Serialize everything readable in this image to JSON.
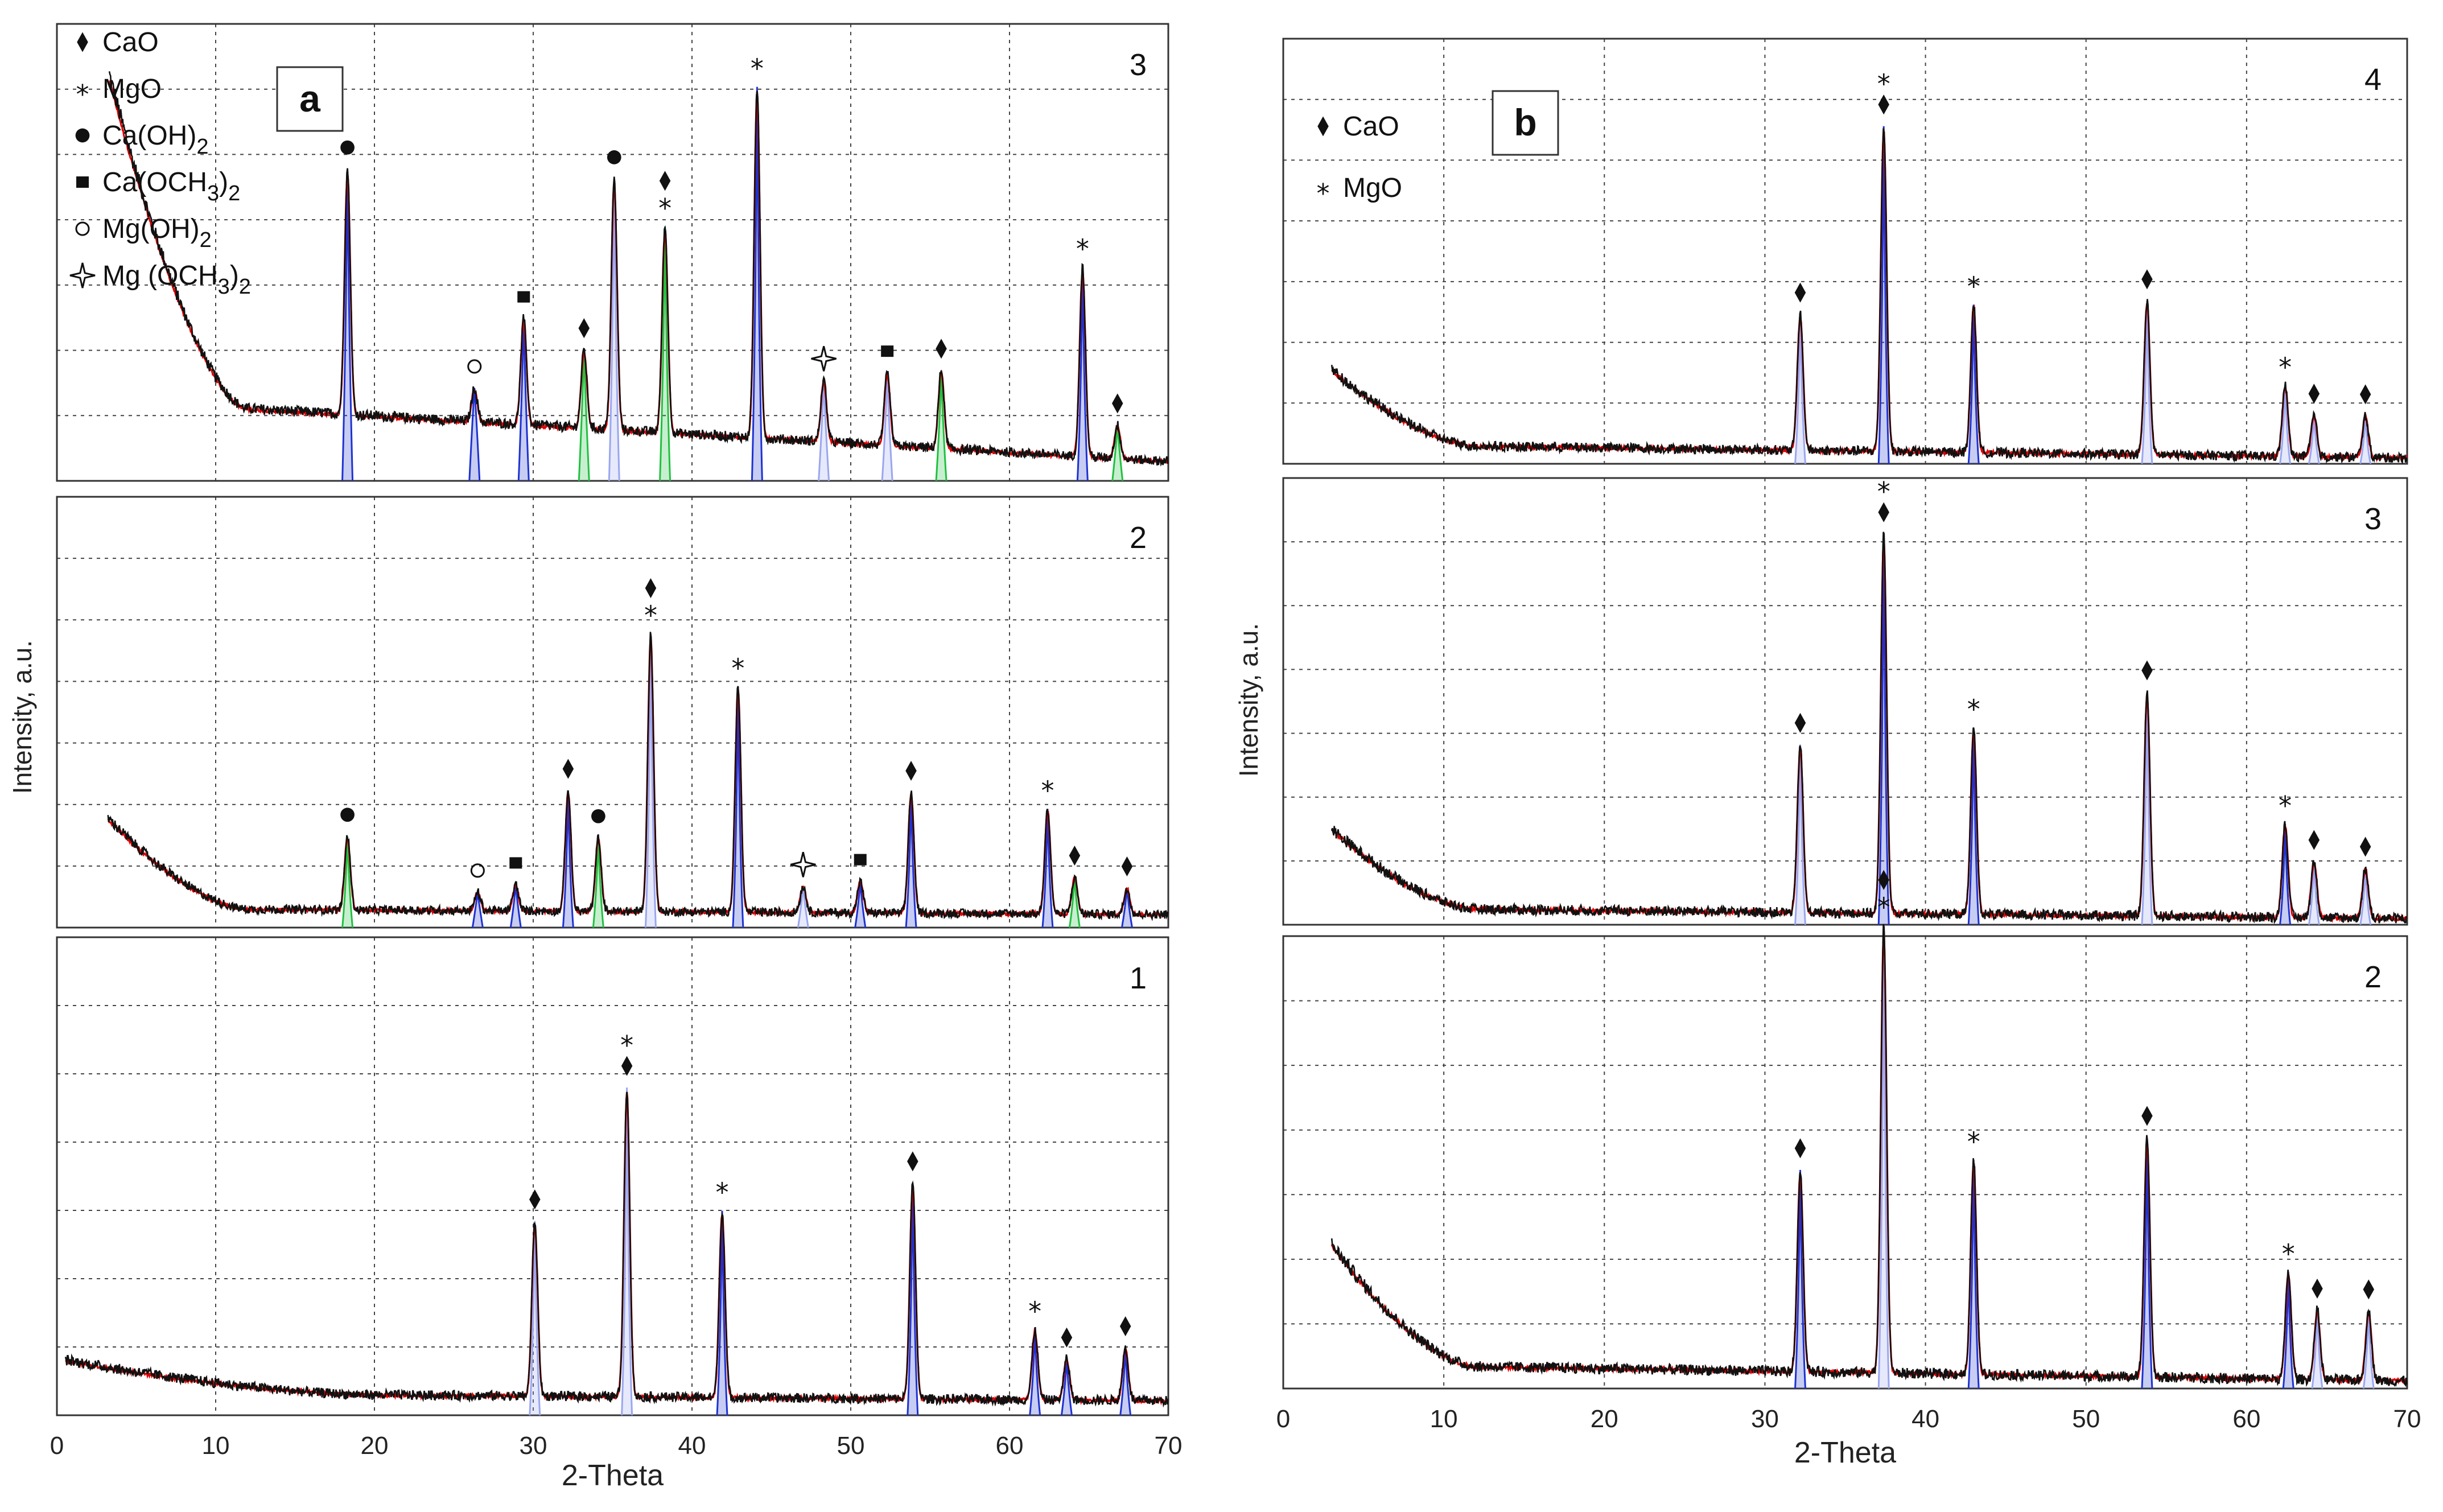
{
  "figure": {
    "colors": {
      "observed": "#111111",
      "calculated": "#e00000",
      "phase_main": "#1e32d0",
      "phase_light": "#9aa6ee",
      "phase_green": "#20c040",
      "grid": "#444444",
      "frame": "#333333"
    }
  },
  "chart_data": [
    {
      "type": "line",
      "panel": "a",
      "panel_label": "a",
      "xlabel": "2-Theta",
      "ylabel": "Intensity, a.u.",
      "xlim": [
        0,
        70
      ],
      "xticks": [
        "0",
        "10",
        "20",
        "30",
        "40",
        "50",
        "60",
        "70"
      ],
      "legend": [
        {
          "symbol": "diamond",
          "label": "CaO"
        },
        {
          "symbol": "star",
          "label": "MgO"
        },
        {
          "symbol": "dot",
          "label": "Ca(OH)",
          "sub": "2"
        },
        {
          "symbol": "square",
          "label": "Ca(OCH",
          "sub": "3",
          "suffix": ")",
          "sub2": "2"
        },
        {
          "symbol": "circle",
          "label": "Mg(OH)",
          "sub": "2"
        },
        {
          "symbol": "sparkle",
          "label": "Mg (OCH",
          "sub": "3",
          "suffix": ")",
          "sub2": "2"
        }
      ],
      "subplots": [
        {
          "label": "3",
          "ymax": 8,
          "background": {
            "start_x": 3.3,
            "start": 7.3,
            "knee_x": 12,
            "knee": 1.3,
            "end": 0.35
          },
          "peaks": [
            {
              "x": 18.3,
              "h": 4.4,
              "c": "blue",
              "m": [
                "dot"
              ]
            },
            {
              "x": 26.3,
              "h": 0.6,
              "c": "blue",
              "m": [
                "circle"
              ]
            },
            {
              "x": 29.4,
              "h": 1.9,
              "c": "blue",
              "m": [
                "square"
              ]
            },
            {
              "x": 33.2,
              "h": 1.4,
              "c": "green",
              "m": [
                "diamond"
              ]
            },
            {
              "x": 35.1,
              "h": 4.5,
              "c": "light",
              "m": [
                "dot"
              ]
            },
            {
              "x": 38.3,
              "h": 3.7,
              "c": "green",
              "m": [
                "star",
                "diamond"
              ]
            },
            {
              "x": 44.1,
              "h": 6.3,
              "c": "blue",
              "m": [
                "star"
              ]
            },
            {
              "x": 48.3,
              "h": 1.1,
              "c": "light",
              "m": [
                "sparkle"
              ]
            },
            {
              "x": 52.3,
              "h": 1.3,
              "c": "light",
              "m": [
                "square"
              ]
            },
            {
              "x": 55.7,
              "h": 1.4,
              "c": "green",
              "m": [
                "diamond"
              ]
            },
            {
              "x": 64.6,
              "h": 3.4,
              "c": "blue",
              "m": [
                "star"
              ]
            },
            {
              "x": 66.8,
              "h": 0.6,
              "c": "green",
              "m": [
                "diamond"
              ]
            }
          ]
        },
        {
          "label": "2",
          "ymax": 8,
          "background": {
            "start_x": 3.2,
            "start": 2.1,
            "knee_x": 12,
            "knee": 0.35,
            "end": 0.25
          },
          "peaks": [
            {
              "x": 18.3,
              "h": 1.4,
              "c": "green",
              "m": [
                "dot"
              ]
            },
            {
              "x": 26.5,
              "h": 0.35,
              "c": "blue",
              "m": [
                "circle"
              ]
            },
            {
              "x": 28.9,
              "h": 0.5,
              "c": "blue",
              "m": [
                "square"
              ]
            },
            {
              "x": 32.2,
              "h": 2.3,
              "c": "blue",
              "m": [
                "diamond"
              ]
            },
            {
              "x": 34.1,
              "h": 1.4,
              "c": "green",
              "m": [
                "dot"
              ]
            },
            {
              "x": 37.4,
              "h": 5.3,
              "c": "light",
              "m": [
                "star",
                "diamond"
              ]
            },
            {
              "x": 42.9,
              "h": 4.3,
              "c": "blue",
              "m": [
                "star"
              ]
            },
            {
              "x": 47.0,
              "h": 0.5,
              "c": "light",
              "m": [
                "sparkle"
              ]
            },
            {
              "x": 50.6,
              "h": 0.6,
              "c": "blue",
              "m": [
                "square"
              ]
            },
            {
              "x": 53.8,
              "h": 2.3,
              "c": "blue",
              "m": [
                "diamond"
              ]
            },
            {
              "x": 62.4,
              "h": 2.0,
              "c": "blue",
              "m": [
                "star"
              ]
            },
            {
              "x": 64.1,
              "h": 0.7,
              "c": "green",
              "m": [
                "diamond"
              ]
            },
            {
              "x": 67.4,
              "h": 0.5,
              "c": "blue",
              "m": [
                "diamond"
              ]
            }
          ]
        },
        {
          "label": "1",
          "ymax": 8,
          "background": {
            "start_x": 0.5,
            "start": 0.95,
            "knee_x": 20,
            "knee": 0.35,
            "end": 0.25
          },
          "peaks": [
            {
              "x": 30.1,
              "h": 3.0,
              "c": "light",
              "m": [
                "diamond"
              ]
            },
            {
              "x": 35.9,
              "h": 5.3,
              "c": "light",
              "m": [
                "diamond",
                "star"
              ]
            },
            {
              "x": 41.9,
              "h": 3.2,
              "c": "blue",
              "m": [
                "star"
              ]
            },
            {
              "x": 53.9,
              "h": 3.7,
              "c": "blue",
              "m": [
                "diamond"
              ]
            },
            {
              "x": 61.6,
              "h": 1.2,
              "c": "blue",
              "m": [
                "star"
              ]
            },
            {
              "x": 63.6,
              "h": 0.7,
              "c": "blue",
              "m": [
                "diamond"
              ]
            },
            {
              "x": 67.3,
              "h": 0.9,
              "c": "blue",
              "m": [
                "diamond"
              ]
            }
          ]
        }
      ]
    },
    {
      "type": "line",
      "panel": "b",
      "panel_label": "b",
      "xlabel": "2-Theta",
      "ylabel": "Intensity, a.u.",
      "xlim": [
        0,
        70
      ],
      "xticks": [
        "0",
        "10",
        "20",
        "30",
        "40",
        "50",
        "60",
        "70"
      ],
      "legend": [
        {
          "symbol": "diamond",
          "label": "CaO"
        },
        {
          "symbol": "star",
          "label": "MgO"
        }
      ],
      "subplots": [
        {
          "label": "4",
          "ymax": 7,
          "background": {
            "start_x": 3.0,
            "start": 1.6,
            "knee_x": 12,
            "knee": 0.3,
            "end": 0.1
          },
          "peaks": [
            {
              "x": 32.2,
              "h": 2.3,
              "c": "light",
              "m": [
                "diamond"
              ]
            },
            {
              "x": 37.4,
              "h": 5.5,
              "c": "blue",
              "m": [
                "diamond",
                "star"
              ]
            },
            {
              "x": 43.0,
              "h": 2.5,
              "c": "blue",
              "m": [
                "star"
              ]
            },
            {
              "x": 53.8,
              "h": 2.6,
              "c": "light",
              "m": [
                "diamond"
              ]
            },
            {
              "x": 62.4,
              "h": 1.2,
              "c": "light",
              "m": [
                "star"
              ]
            },
            {
              "x": 64.2,
              "h": 0.7,
              "c": "light",
              "m": [
                "diamond"
              ]
            },
            {
              "x": 67.4,
              "h": 0.7,
              "c": "light",
              "m": [
                "diamond"
              ]
            }
          ]
        },
        {
          "label": "3",
          "ymax": 7,
          "background": {
            "start_x": 3.0,
            "start": 1.55,
            "knee_x": 12,
            "knee": 0.25,
            "end": 0.1
          },
          "peaks": [
            {
              "x": 32.2,
              "h": 2.7,
              "c": "light",
              "m": [
                "diamond"
              ]
            },
            {
              "x": 37.4,
              "h": 6.1,
              "c": "blue",
              "m": [
                "diamond",
                "star"
              ]
            },
            {
              "x": 43.0,
              "h": 3.0,
              "c": "blue",
              "m": [
                "star"
              ]
            },
            {
              "x": 53.8,
              "h": 3.6,
              "c": "light",
              "m": [
                "diamond"
              ]
            },
            {
              "x": 62.4,
              "h": 1.5,
              "c": "blue",
              "m": [
                "star"
              ]
            },
            {
              "x": 64.2,
              "h": 0.9,
              "c": "light",
              "m": [
                "diamond"
              ]
            },
            {
              "x": 67.4,
              "h": 0.8,
              "c": "light",
              "m": [
                "diamond"
              ]
            }
          ]
        },
        {
          "label": "2",
          "ymax": 7,
          "background": {
            "start_x": 3.0,
            "start": 2.3,
            "knee_x": 12,
            "knee": 0.35,
            "end": 0.12
          },
          "peaks": [
            {
              "x": 32.2,
              "h": 3.2,
              "c": "blue",
              "m": [
                "diamond"
              ]
            },
            {
              "x": 37.4,
              "h": 7.1,
              "c": "light",
              "m": [
                "star",
                "diamond"
              ]
            },
            {
              "x": 43.0,
              "h": 3.4,
              "c": "blue",
              "m": [
                "star"
              ]
            },
            {
              "x": 53.8,
              "h": 3.8,
              "c": "blue",
              "m": [
                "diamond"
              ]
            },
            {
              "x": 62.6,
              "h": 1.7,
              "c": "blue",
              "m": [
                "star"
              ]
            },
            {
              "x": 64.4,
              "h": 1.1,
              "c": "light",
              "m": [
                "diamond"
              ]
            },
            {
              "x": 67.6,
              "h": 1.1,
              "c": "light",
              "m": [
                "diamond"
              ]
            }
          ]
        }
      ]
    }
  ]
}
